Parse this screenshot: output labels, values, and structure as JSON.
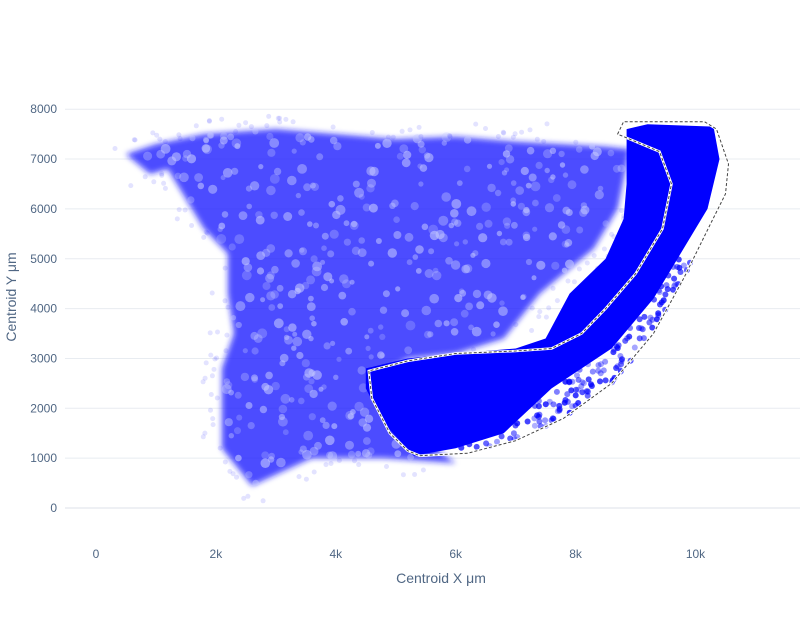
{
  "chart_data": {
    "type": "scatter",
    "title": "",
    "xlabel": "Centroid X μm",
    "ylabel": "Centroid Y μm",
    "xlim": [
      -900,
      11800
    ],
    "ylim": [
      -600,
      8500
    ],
    "x_ticks": [
      0,
      2000,
      4000,
      6000,
      8000,
      10000
    ],
    "x_tick_labels": [
      "0",
      "2k",
      "4k",
      "6k",
      "8k",
      "10k"
    ],
    "y_ticks": [
      0,
      1000,
      2000,
      3000,
      4000,
      5000,
      6000,
      7000,
      8000
    ],
    "y_tick_labels": [
      "0",
      "1000",
      "2000",
      "3000",
      "4000",
      "5000",
      "6000",
      "7000",
      "8000"
    ],
    "grid": "horizontal",
    "legend": "none",
    "colors": {
      "points": "#1a1aff",
      "selected": "#0000ff",
      "selection_outline": "#444444",
      "tick_text": "#506784",
      "grid": "#e8ecf1"
    },
    "tissue_outline": [
      [
        500,
        7100
      ],
      [
        1000,
        7300
      ],
      [
        1800,
        7500
      ],
      [
        3000,
        7600
      ],
      [
        4000,
        7500
      ],
      [
        5000,
        7400
      ],
      [
        6000,
        7450
      ],
      [
        7000,
        7350
      ],
      [
        8500,
        7250
      ],
      [
        8900,
        7200
      ],
      [
        8700,
        6000
      ],
      [
        8300,
        5200
      ],
      [
        7400,
        4300
      ],
      [
        6800,
        3400
      ],
      [
        6000,
        3100
      ],
      [
        5200,
        3000
      ],
      [
        4600,
        2600
      ],
      [
        5400,
        1400
      ],
      [
        6000,
        900
      ],
      [
        4800,
        1000
      ],
      [
        3600,
        1000
      ],
      [
        2600,
        450
      ],
      [
        2100,
        1200
      ],
      [
        2100,
        2800
      ],
      [
        2300,
        3500
      ],
      [
        2200,
        4300
      ],
      [
        2200,
        5100
      ],
      [
        1800,
        5600
      ],
      [
        1500,
        6200
      ],
      [
        1200,
        6800
      ],
      [
        900,
        6700
      ]
    ],
    "selected_region_outline": [
      [
        4500,
        2800
      ],
      [
        5200,
        3000
      ],
      [
        6000,
        3100
      ],
      [
        7000,
        3200
      ],
      [
        7500,
        3400
      ],
      [
        7900,
        4300
      ],
      [
        8500,
        5000
      ],
      [
        8800,
        5800
      ],
      [
        8850,
        6500
      ],
      [
        8850,
        7600
      ],
      [
        9200,
        7700
      ],
      [
        10300,
        7650
      ],
      [
        10400,
        7000
      ],
      [
        10200,
        6000
      ],
      [
        9800,
        5200
      ],
      [
        9300,
        4200
      ],
      [
        8600,
        3200
      ],
      [
        7600,
        2400
      ],
      [
        6800,
        1500
      ],
      [
        6000,
        1200
      ],
      [
        5300,
        1050
      ],
      [
        4800,
        1700
      ],
      [
        4500,
        2400
      ]
    ],
    "lasso_outline": [
      [
        5400,
        1050
      ],
      [
        6200,
        1100
      ],
      [
        7000,
        1350
      ],
      [
        7800,
        1800
      ],
      [
        8600,
        2500
      ],
      [
        9300,
        3500
      ],
      [
        9800,
        4600
      ],
      [
        10250,
        5700
      ],
      [
        10500,
        6300
      ],
      [
        10550,
        6900
      ],
      [
        10350,
        7600
      ],
      [
        10150,
        7750
      ],
      [
        8800,
        7750
      ],
      [
        8700,
        7500
      ],
      [
        9400,
        7150
      ],
      [
        9600,
        6500
      ],
      [
        9450,
        5600
      ],
      [
        9000,
        4700
      ],
      [
        8500,
        4000
      ],
      [
        8100,
        3500
      ],
      [
        7600,
        3200
      ],
      [
        7000,
        3150
      ],
      [
        6000,
        3100
      ],
      [
        5200,
        2950
      ],
      [
        4550,
        2750
      ],
      [
        4600,
        2200
      ],
      [
        4900,
        1500
      ],
      [
        5200,
        1150
      ]
    ]
  }
}
